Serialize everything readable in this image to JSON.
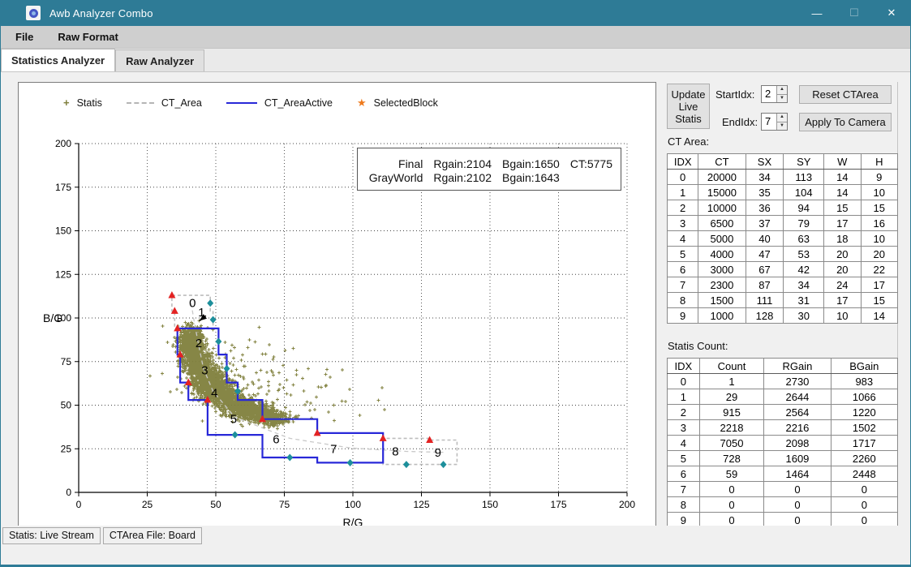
{
  "window": {
    "title": "Awb Analyzer Combo",
    "controls": {
      "minimize": "—",
      "maximize": "☐",
      "close": "✕"
    }
  },
  "menu": {
    "items": [
      "File",
      "Raw Format"
    ]
  },
  "tabs": [
    {
      "label": "Statistics Analyzer",
      "active": true
    },
    {
      "label": "Raw Analyzer",
      "active": false
    }
  ],
  "controls": {
    "update_button": "Update\nLive\nStatis",
    "start_idx_label": "StartIdx:",
    "start_idx_value": "2",
    "end_idx_label": "EndIdx:",
    "end_idx_value": "7",
    "reset_button": "Reset CTArea",
    "apply_button": "Apply To Camera"
  },
  "ct_area": {
    "title": "CT Area:",
    "headers": [
      "IDX",
      "CT",
      "SX",
      "SY",
      "W",
      "H"
    ],
    "rows": [
      [
        0,
        20000,
        34,
        113,
        14,
        9
      ],
      [
        1,
        15000,
        35,
        104,
        14,
        10
      ],
      [
        2,
        10000,
        36,
        94,
        15,
        15
      ],
      [
        3,
        6500,
        37,
        79,
        17,
        16
      ],
      [
        4,
        5000,
        40,
        63,
        18,
        10
      ],
      [
        5,
        4000,
        47,
        53,
        20,
        20
      ],
      [
        6,
        3000,
        67,
        42,
        20,
        22
      ],
      [
        7,
        2300,
        87,
        34,
        24,
        17
      ],
      [
        8,
        1500,
        111,
        31,
        17,
        15
      ],
      [
        9,
        1000,
        128,
        30,
        10,
        14
      ]
    ]
  },
  "statis_count": {
    "title": "Statis Count:",
    "headers": [
      "IDX",
      "Count",
      "RGain",
      "BGain"
    ],
    "rows": [
      [
        0,
        1,
        2730,
        983
      ],
      [
        1,
        29,
        2644,
        1066
      ],
      [
        2,
        915,
        2564,
        1220
      ],
      [
        3,
        2218,
        2216,
        1502
      ],
      [
        4,
        7050,
        2098,
        1717
      ],
      [
        5,
        728,
        1609,
        2260
      ],
      [
        6,
        59,
        1464,
        2448
      ],
      [
        7,
        0,
        0,
        0
      ],
      [
        8,
        0,
        0,
        0
      ],
      [
        9,
        0,
        0,
        0
      ]
    ]
  },
  "status_bar": {
    "items": [
      "Statis: Live Stream",
      "CTArea File: Board"
    ]
  },
  "chart_data": {
    "type": "scatter",
    "xlabel": "R/G",
    "ylabel": "B/G",
    "xlim": [
      0,
      200
    ],
    "ylim": [
      0,
      200
    ],
    "tick_step": 25,
    "grid": true,
    "legend": [
      {
        "label": "Statis",
        "marker": "plus",
        "color": "#7f7f3c"
      },
      {
        "label": "CT_Area",
        "marker": "dashed",
        "color": "#b5b5b5"
      },
      {
        "label": "CT_AreaActive",
        "marker": "line",
        "color": "#2828d8"
      },
      {
        "label": "SelectedBlock",
        "marker": "star",
        "color": "#ee7a1e"
      }
    ],
    "annotation": {
      "rows": [
        [
          "Final",
          "Rgain:2104",
          "Bgain:1650",
          "CT:5775"
        ],
        [
          "GrayWorld",
          "Rgain:2102",
          "Bgain:1643",
          ""
        ]
      ]
    },
    "blocks": [
      {
        "idx": 0,
        "ct": 20000,
        "sx": 34,
        "sy": 113,
        "w": 14,
        "h": 9
      },
      {
        "idx": 1,
        "ct": 15000,
        "sx": 35,
        "sy": 104,
        "w": 14,
        "h": 10
      },
      {
        "idx": 2,
        "ct": 10000,
        "sx": 36,
        "sy": 94,
        "w": 15,
        "h": 15
      },
      {
        "idx": 3,
        "ct": 6500,
        "sx": 37,
        "sy": 79,
        "w": 17,
        "h": 16
      },
      {
        "idx": 4,
        "ct": 5000,
        "sx": 40,
        "sy": 63,
        "w": 18,
        "h": 10
      },
      {
        "idx": 5,
        "ct": 4000,
        "sx": 47,
        "sy": 53,
        "w": 20,
        "h": 20
      },
      {
        "idx": 6,
        "ct": 3000,
        "sx": 67,
        "sy": 42,
        "w": 20,
        "h": 22
      },
      {
        "idx": 7,
        "ct": 2300,
        "sx": 87,
        "sy": 34,
        "w": 24,
        "h": 17
      },
      {
        "idx": 8,
        "ct": 1500,
        "sx": 111,
        "sy": 31,
        "w": 17,
        "h": 15
      },
      {
        "idx": 9,
        "ct": 1000,
        "sx": 128,
        "sy": 30,
        "w": 10,
        "h": 14
      }
    ],
    "active_range": [
      2,
      7
    ],
    "block_labels": [
      {
        "text": "0",
        "x": 41.5,
        "y": 108.5
      },
      {
        "text": "1",
        "x": 44.8,
        "y": 103.2
      },
      {
        "text": "2",
        "x": 43.8,
        "y": 85.5
      },
      {
        "text": "3",
        "x": 46.0,
        "y": 70.0
      },
      {
        "text": "4",
        "x": 49.5,
        "y": 57.0
      },
      {
        "text": "5",
        "x": 56.5,
        "y": 42.0
      },
      {
        "text": "6",
        "x": 72.0,
        "y": 30.5
      },
      {
        "text": "7",
        "x": 93.0,
        "y": 25.0
      },
      {
        "text": "8",
        "x": 115.5,
        "y": 23.5
      },
      {
        "text": "9",
        "x": 131.0,
        "y": 22.7
      }
    ],
    "arrow": {
      "from": [
        46.4,
        101.3
      ],
      "to": [
        44.0,
        98.4
      ]
    },
    "scatter_clusters": [
      {
        "cx": 41.0,
        "cy": 86.0,
        "sx": 2.2,
        "sy": 4.3,
        "n": 850
      },
      {
        "cx": 43.5,
        "cy": 74.5,
        "sx": 2.6,
        "sy": 4.3,
        "n": 650
      },
      {
        "cx": 47.5,
        "cy": 63.5,
        "sx": 3.0,
        "sy": 4.0,
        "n": 750
      },
      {
        "cx": 52.5,
        "cy": 56.0,
        "sx": 3.2,
        "sy": 3.2,
        "n": 550
      },
      {
        "cx": 58.0,
        "cy": 49.5,
        "sx": 3.4,
        "sy": 2.8,
        "n": 500
      },
      {
        "cx": 64.5,
        "cy": 45.5,
        "sx": 3.8,
        "sy": 2.4,
        "n": 450
      },
      {
        "cx": 71.0,
        "cy": 42.5,
        "sx": 3.2,
        "sy": 2.0,
        "n": 260
      },
      {
        "cx": 53.0,
        "cy": 66.0,
        "sx": 13.0,
        "sy": 12.0,
        "n": 120
      },
      {
        "cx": 84.0,
        "cy": 56.0,
        "sx": 12.0,
        "sy": 8.0,
        "n": 40
      }
    ],
    "colors": {
      "scatter": "#7f7f3c",
      "ct_area": "#bdbdbd",
      "ct_area_active": "#2828d8",
      "triangle": "#e32222",
      "diamond": "#1d8f9b",
      "curve": "#c9c9c9",
      "grid": "#444444",
      "star": "#ee7a1e"
    }
  }
}
